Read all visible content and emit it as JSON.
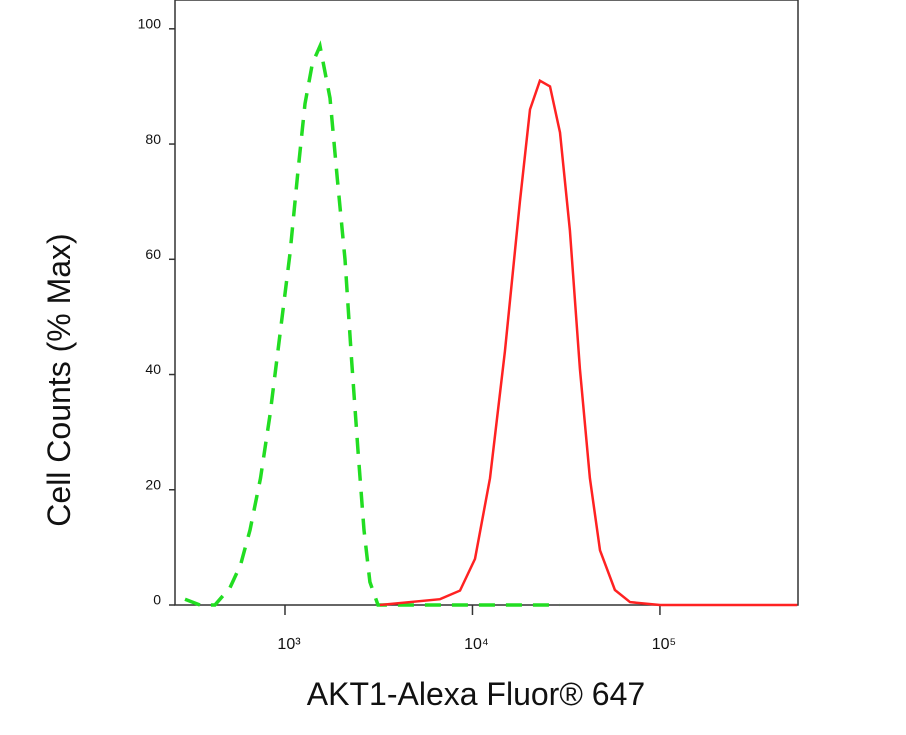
{
  "chart_data": {
    "type": "line",
    "xlabel": "AKT1-Alexa Fluor® 647",
    "ylabel": "Cell Counts (% Max)",
    "xscale": "log",
    "xlim": [
      259,
      545000
    ],
    "ylim": [
      0,
      105
    ],
    "xticks": [
      {
        "value": 1000,
        "label": "10³"
      },
      {
        "value": 10000,
        "label": "10⁴"
      },
      {
        "value": 100000,
        "label": "10⁵"
      }
    ],
    "yticks": [
      0,
      20,
      40,
      60,
      80,
      100
    ],
    "series": [
      {
        "color": "#22dd22",
        "dashed": true,
        "x": [
          293,
          352,
          423,
          509,
          580,
          651,
          740,
          832,
          940,
          1063,
          1170,
          1278,
          1400,
          1537,
          1738,
          1900,
          2089,
          2260,
          2449,
          2640,
          2838,
          3134,
          7586,
          29300
        ],
        "values": [
          1,
          0,
          0,
          3,
          7,
          13,
          22,
          33,
          47,
          61,
          75,
          87,
          94,
          97,
          88,
          74,
          60,
          43,
          27,
          13,
          4,
          0,
          0,
          0
        ]
      },
      {
        "color": "#ff2222",
        "dashed": false,
        "x": [
          3213,
          6714,
          8577,
          10310,
          12400,
          14900,
          17900,
          20270,
          22900,
          25900,
          29300,
          33100,
          37400,
          42300,
          47900,
          57500,
          69200,
          100000,
          540000
        ],
        "values": [
          0,
          1,
          2.5,
          8,
          22,
          44,
          70,
          86,
          91,
          90,
          82,
          65,
          41,
          22,
          9.5,
          2.6,
          0.5,
          0,
          0
        ]
      }
    ]
  }
}
